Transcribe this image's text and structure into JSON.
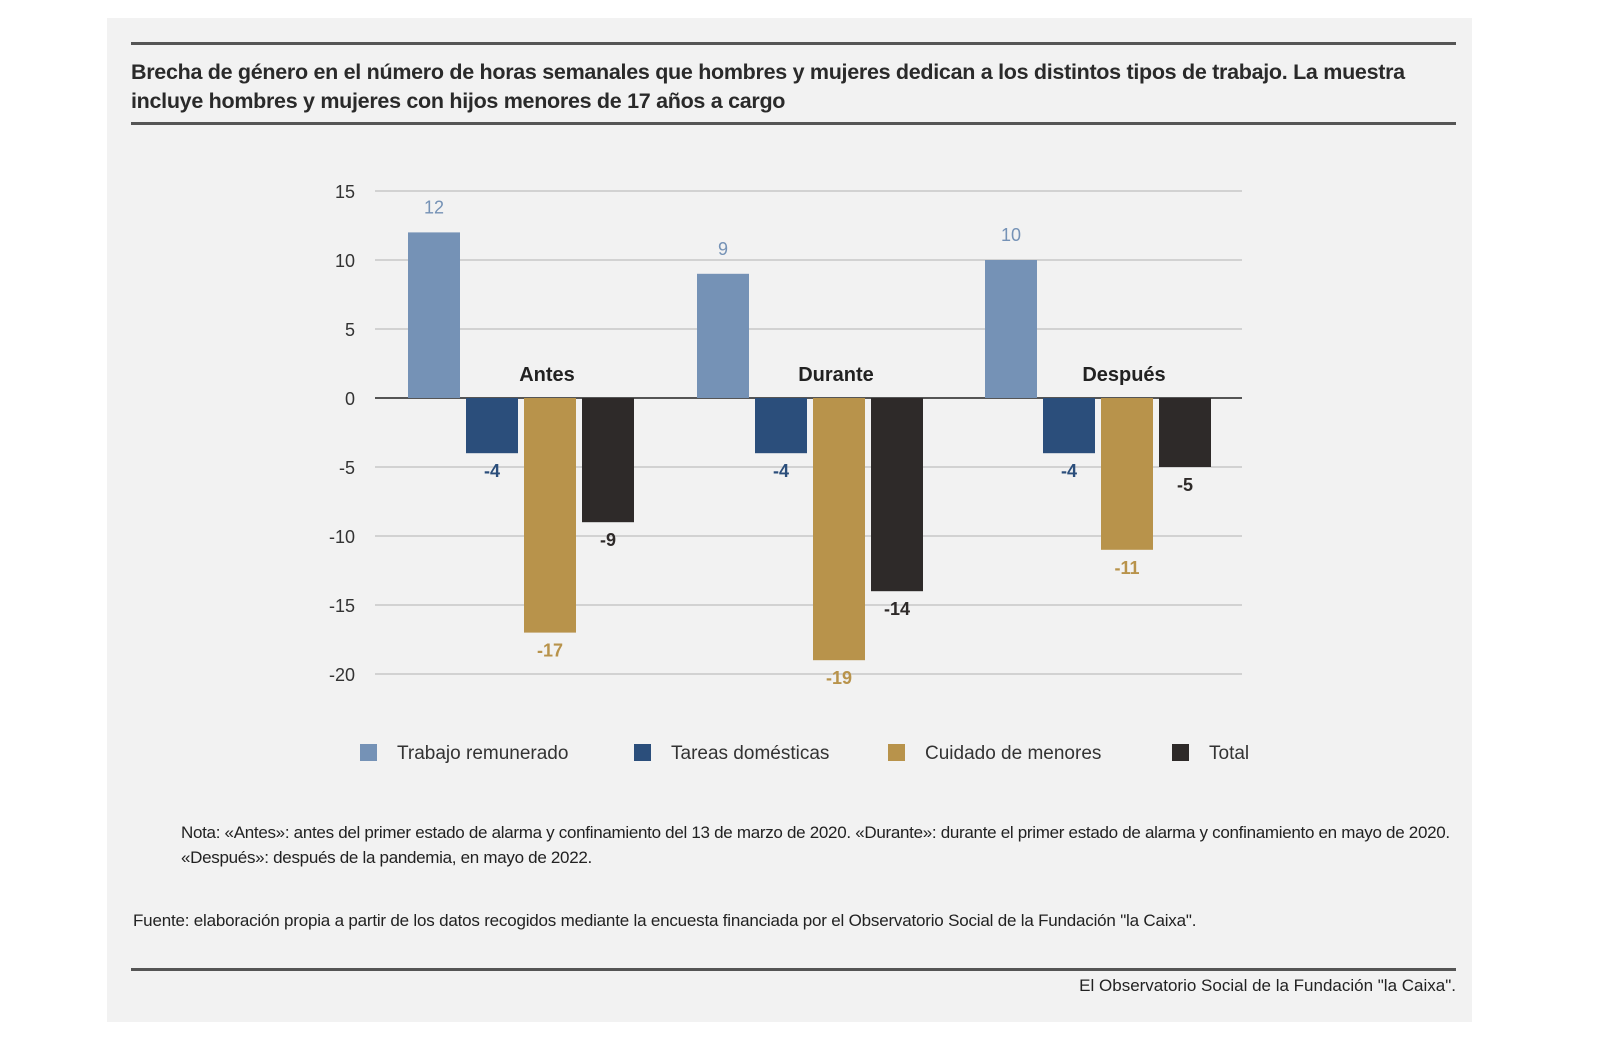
{
  "title": "Brecha de género en el número de horas semanales que hombres y mujeres dedican a los distintos tipos de trabajo. La muestra incluye hombres y mujeres con hijos menores de 17 años a cargo",
  "note": "Nota: «Antes»: antes del primer estado de alarma y confinamiento del 13 de marzo de 2020. «Durante»: durante el primer estado de alarma y confinamiento en mayo de 2020. «Después»: después de la pandemia, en mayo de 2022.",
  "source": "Fuente: elaboración propia a partir de los datos recogidos mediante la encuesta financiada por el Observatorio Social de la Fundación \"la Caixa\".",
  "credit": "El Observatorio Social de la Fundación \"la Caixa\".",
  "chart_data": {
    "type": "bar",
    "title": "Brecha de género en el número de horas semanales que hombres y mujeres dedican a los distintos tipos de trabajo. La muestra incluye hombres y mujeres con hijos menores de 17 años a cargo",
    "categories": [
      "Antes",
      "Durante",
      "Después"
    ],
    "series": [
      {
        "name": "Trabajo remunerado",
        "color": "#7592b6",
        "values": [
          12,
          9,
          10
        ]
      },
      {
        "name": "Tareas domésticas",
        "color": "#2b4e7b",
        "values": [
          -4,
          -4,
          -4
        ]
      },
      {
        "name": "Cuidado de menores",
        "color": "#b8934b",
        "values": [
          -17,
          -19,
          -11
        ]
      },
      {
        "name": "Total",
        "color": "#2e2a29",
        "values": [
          -9,
          -14,
          -5
        ]
      }
    ],
    "ylim": [
      -20,
      15
    ],
    "yticks": [
      15,
      10,
      5,
      0,
      -5,
      -10,
      -15,
      -20
    ],
    "grid": true,
    "legend": "bottom",
    "xlabel": "",
    "ylabel": ""
  }
}
